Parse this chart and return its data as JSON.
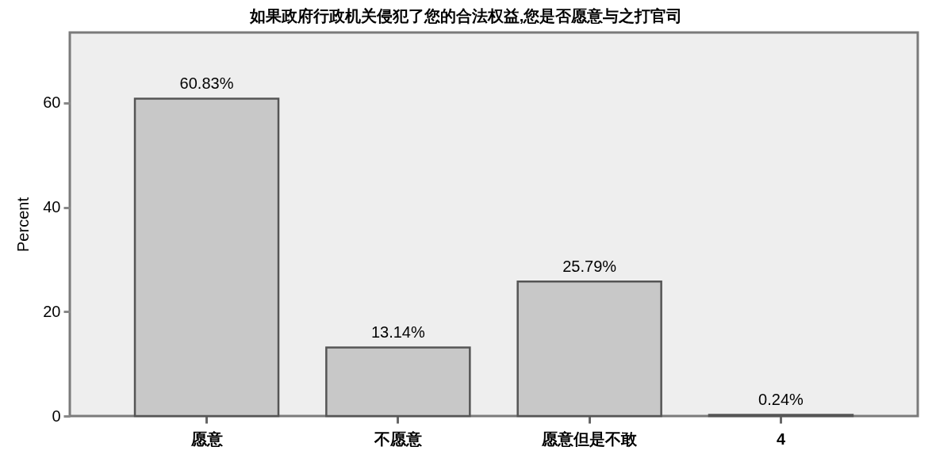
{
  "chart_data": {
    "type": "bar",
    "title": "如果政府行政机关侵犯了您的合法权益,您是否愿意与之打官司",
    "ylabel": "Percent",
    "categories": [
      "愿意",
      "不愿意",
      "愿意但是不敢",
      "4"
    ],
    "values": [
      60.83,
      13.14,
      25.79,
      0.24
    ],
    "value_labels": [
      "60.83%",
      "13.14%",
      "25.79%",
      "0.24%"
    ],
    "color": "#c8c8c8",
    "ylim": [
      0,
      73.5
    ],
    "yticks": [
      0,
      20,
      40,
      60
    ],
    "grid": false
  }
}
